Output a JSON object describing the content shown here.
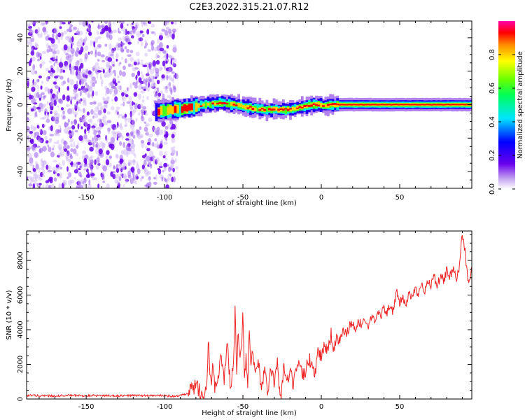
{
  "title": "C2E3.2022.315.21.07.R12",
  "chart_data": [
    {
      "type": "heatmap",
      "title": "",
      "xlabel": "Height of straight line (km)",
      "ylabel": "Frequency (Hz)",
      "xlim": [
        -188,
        96
      ],
      "ylim": [
        -50,
        50
      ],
      "xticks": [
        -150,
        -100,
        -50,
        0,
        50
      ],
      "yticks": [
        -40,
        -20,
        0,
        20,
        40
      ],
      "colorbar": {
        "label": "Normalized spectral amplitude",
        "range": [
          0,
          1
        ],
        "ticks": [
          "0.0",
          "0.2",
          "0.4",
          "0.6",
          "0.8"
        ]
      },
      "regions": [
        {
          "name": "noise",
          "x_range": [
            -188,
            -92
          ],
          "freq_range": [
            -50,
            50
          ],
          "amplitude": 0.15
        },
        {
          "name": "signal",
          "x_range": [
            -106,
            96
          ],
          "track": [
            [
              -106,
              -4
            ],
            [
              -95,
              -3
            ],
            [
              -85,
              -2
            ],
            [
              -75,
              0
            ],
            [
              -65,
              1
            ],
            [
              -55,
              0
            ],
            [
              -45,
              -2
            ],
            [
              -38,
              -3
            ],
            [
              -30,
              -3
            ],
            [
              -22,
              -3
            ],
            [
              -15,
              -2
            ],
            [
              -10,
              -1
            ],
            [
              -5,
              0
            ],
            [
              0,
              0
            ],
            [
              2,
              -1
            ],
            [
              5,
              0
            ],
            [
              10,
              0
            ],
            [
              30,
              0
            ],
            [
              60,
              0
            ],
            [
              96,
              0
            ]
          ],
          "amplitude_range": [
            0.2,
            1.0
          ]
        }
      ]
    },
    {
      "type": "line",
      "title": "",
      "xlabel": "Height of straight line (km)",
      "ylabel": "SNR (10 * v/v)",
      "xlim": [
        -188,
        96
      ],
      "ylim": [
        0,
        9700
      ],
      "xticks": [
        -150,
        -100,
        -50,
        0,
        50
      ],
      "yticks": [
        0,
        2000,
        4000,
        6000,
        8000
      ],
      "color": "#ee2222",
      "series": [
        {
          "x": [
            -188,
            -180,
            -170,
            -160,
            -150,
            -140,
            -130,
            -120,
            -110,
            -100,
            -95,
            -90,
            -85,
            -82,
            -80,
            -78,
            -75,
            -73,
            -72,
            -71,
            -70,
            -69,
            -68,
            -66,
            -64,
            -62,
            -60,
            -58,
            -56,
            -55,
            -54,
            -53,
            -52,
            -51,
            -50,
            -49,
            -48,
            -47,
            -46,
            -45,
            -44,
            -42,
            -40,
            -38,
            -36,
            -34,
            -32,
            -30,
            -28,
            -26,
            -24,
            -22,
            -20,
            -18,
            -16,
            -14,
            -12,
            -10,
            -8,
            -6,
            -4,
            -2,
            0,
            2,
            4,
            6,
            8,
            10,
            12,
            14,
            16,
            18,
            20,
            22,
            24,
            26,
            28,
            30,
            32,
            34,
            36,
            38,
            40,
            42,
            44,
            46,
            48,
            50,
            52,
            54,
            56,
            58,
            60,
            62,
            64,
            66,
            68,
            70,
            72,
            74,
            76,
            78,
            80,
            82,
            84,
            86,
            88,
            90,
            91,
            92,
            93,
            94,
            95,
            96
          ],
          "y": [
            200,
            200,
            180,
            210,
            190,
            200,
            180,
            200,
            190,
            200,
            150,
            200,
            300,
            600,
            800,
            500,
            400,
            700,
            3600,
            1500,
            800,
            2200,
            700,
            1200,
            2800,
            900,
            3200,
            600,
            1800,
            5100,
            1200,
            4200,
            2000,
            3000,
            4800,
            800,
            2600,
            300,
            4200,
            1500,
            2700,
            1200,
            2000,
            600,
            2200,
            300,
            1800,
            1000,
            2000,
            0,
            1800,
            800,
            1500,
            900,
            1400,
            1900,
            1300,
            1700,
            2300,
            2000,
            1600,
            2800,
            2400,
            3300,
            2600,
            3800,
            2900,
            3500,
            3300,
            4000,
            3700,
            4200,
            4400,
            3900,
            4500,
            4300,
            4600,
            4100,
            4800,
            4400,
            5200,
            4800,
            5300,
            4900,
            5500,
            5000,
            6200,
            5400,
            6000,
            5300,
            6200,
            5800,
            6500,
            6000,
            6800,
            6200,
            6700,
            6600,
            7100,
            6400,
            7200,
            6800,
            7400,
            7000,
            7500,
            6900,
            7600,
            9600,
            8800,
            8300,
            7200,
            7000,
            6800,
            7500
          ]
        }
      ]
    }
  ]
}
